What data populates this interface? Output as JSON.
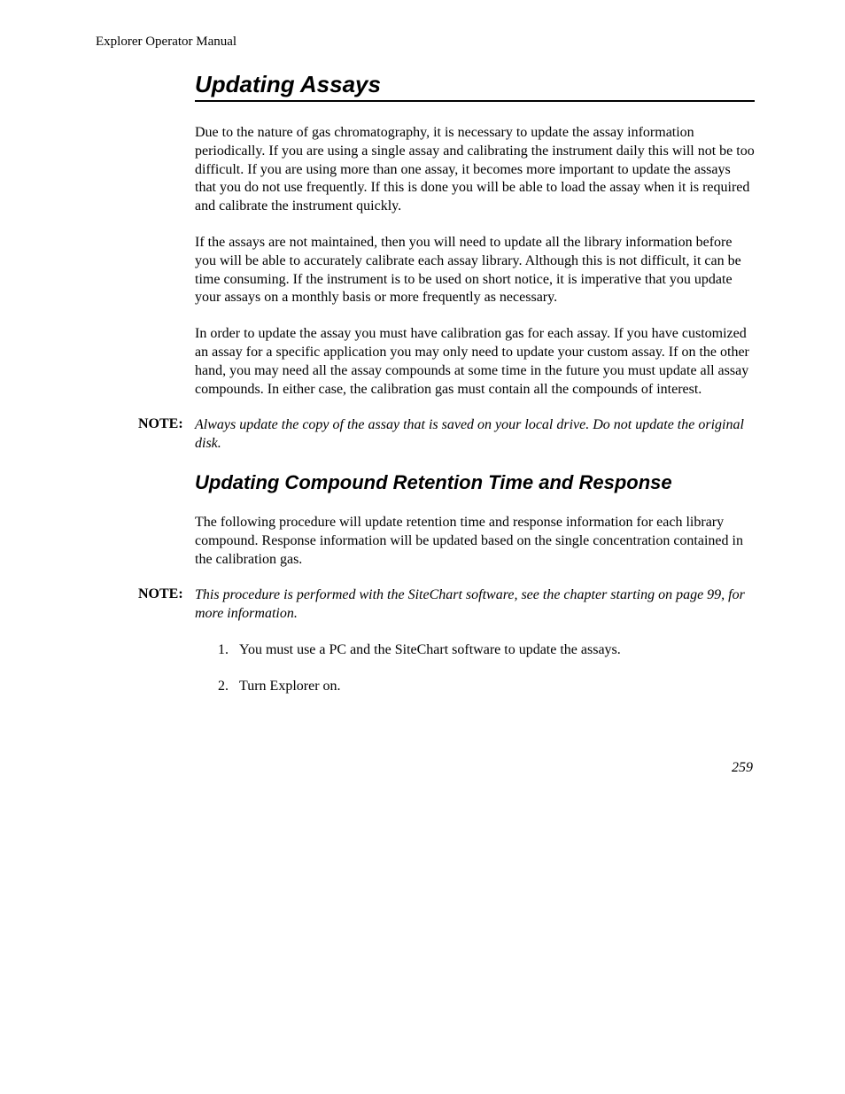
{
  "header": "Explorer Operator Manual",
  "title": "Updating Assays",
  "para1": "Due to the nature of gas chromatography, it is necessary to update the assay information periodically. If you are using a single assay and calibrating the instrument daily this will not be too difficult. If you are using more than one assay, it becomes more important to update the assays that you do not use frequently. If this is done you will be able to load the assay when it is required and calibrate the instrument quickly.",
  "para2": "If the assays are not maintained, then you will need to update all the library information before you will be able to accurately calibrate each assay library. Although this is not difficult, it can be time consuming. If the instrument is to be used on short notice, it is imperative that you update your assays on a monthly basis or more frequently as necessary.",
  "para3": "In order to update the assay you must have calibration gas for each assay.  If you have customized an assay for a specific application you may only need to update your custom assay. If on the other hand, you may need all the assay compounds at some time in the future you must update all assay compounds. In either case, the calibration gas must contain all the compounds of interest.",
  "note1_label": "NOTE:",
  "note1_text": "Always update the copy of the assay that is saved on your local drive. Do not update the original disk.",
  "subtitle": "Updating Compound Retention Time and Response",
  "para4": "The following procedure will update retention time and response information for each library compound. Response information will be updated based on the single concentration contained in the calibration gas.",
  "note2_label": "NOTE:",
  "note2_text": "This procedure is performed with the SiteChart software, see the chapter starting on page 99, for more information.",
  "step1_num": "1.",
  "step1_text": "You must use a PC and the SiteChart software to update the assays.",
  "step2_num": "2.",
  "step2_text": "Turn Explorer on.",
  "page_number": "259"
}
